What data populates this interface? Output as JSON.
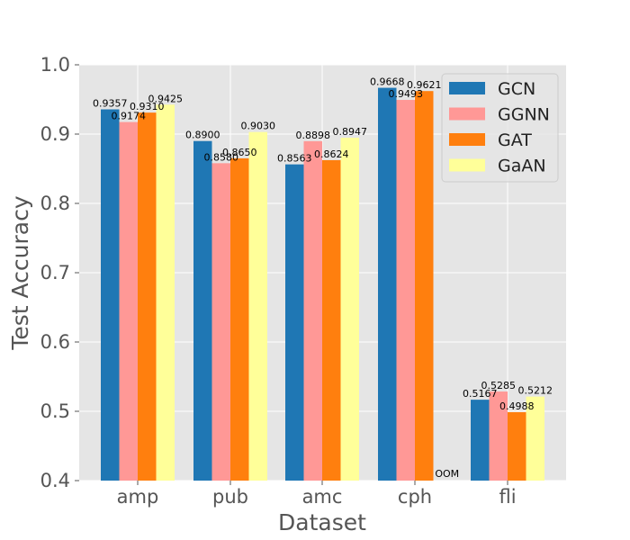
{
  "chart_data": {
    "type": "bar",
    "title": "",
    "xlabel": "Dataset",
    "ylabel": "Test Accuracy",
    "categories": [
      "amp",
      "pub",
      "amc",
      "cph",
      "fli"
    ],
    "ylim": [
      0.4,
      1.0
    ],
    "yticks": [
      "0.4",
      "0.5",
      "0.6",
      "0.7",
      "0.8",
      "0.9",
      "1.0"
    ],
    "grid": true,
    "legend_position": "top-right",
    "series": [
      {
        "name": "GCN",
        "color": "#1f77b4",
        "values": [
          0.9357,
          0.89,
          0.8563,
          0.9668,
          0.5167
        ],
        "labels": [
          "0.9357",
          "0.8900",
          "0.8563",
          "0.9668",
          "0.5167"
        ]
      },
      {
        "name": "GGNN",
        "color": "#ff9896",
        "values": [
          0.9174,
          0.858,
          0.8898,
          0.9493,
          0.5285
        ],
        "labels": [
          "0.9174",
          "0.8580",
          "0.8898",
          "0.9493",
          "0.5285"
        ]
      },
      {
        "name": "GAT",
        "color": "#ff7f0e",
        "values": [
          0.931,
          0.865,
          0.8624,
          0.9621,
          0.4988
        ],
        "labels": [
          "0.9310",
          "0.8650",
          "0.8624",
          "0.9621",
          "0.4988"
        ]
      },
      {
        "name": "GaAN",
        "color": "#ffff99",
        "values": [
          0.9425,
          0.903,
          0.8947,
          null,
          0.5212
        ],
        "labels": [
          "0.9425",
          "0.9030",
          "0.8947",
          "OOM",
          "0.5212"
        ]
      }
    ]
  }
}
